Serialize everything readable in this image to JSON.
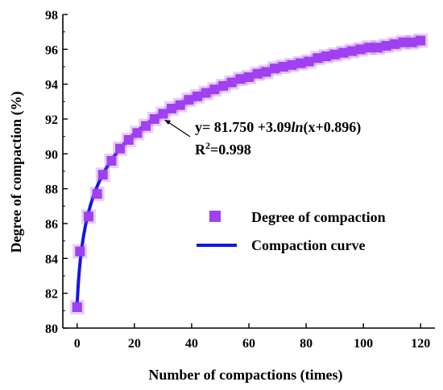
{
  "chart_data": {
    "type": "scatter",
    "title": "",
    "xlabel": "Number of compactions (times)",
    "ylabel": "Degree of compaction (%)",
    "xlim": [
      -5,
      125
    ],
    "ylim": [
      80,
      98
    ],
    "xticks": [
      0,
      20,
      40,
      60,
      80,
      100,
      120
    ],
    "yticks": [
      80,
      82,
      84,
      86,
      88,
      90,
      92,
      94,
      96,
      98
    ],
    "grid": false,
    "legend_position": "right",
    "series": [
      {
        "name": "Degree of compaction",
        "kind": "scatter",
        "marker": "square",
        "color": "#a040f0",
        "x": [
          0,
          1,
          4,
          7,
          9,
          12,
          15,
          18,
          21,
          24,
          27,
          30,
          33,
          36,
          39,
          42,
          45,
          48,
          51,
          54,
          57,
          60,
          63,
          66,
          69,
          72,
          75,
          78,
          81,
          84,
          87,
          90,
          93,
          96,
          99,
          102,
          105,
          108,
          111,
          114,
          117,
          120
        ],
        "y": [
          81.2,
          84.4,
          86.4,
          87.7,
          88.8,
          89.6,
          90.3,
          90.8,
          91.2,
          91.6,
          92.0,
          92.3,
          92.6,
          92.8,
          93.1,
          93.3,
          93.5,
          93.7,
          93.9,
          94.1,
          94.3,
          94.4,
          94.6,
          94.7,
          94.9,
          95.0,
          95.1,
          95.2,
          95.3,
          95.5,
          95.6,
          95.7,
          95.8,
          95.9,
          96.0,
          96.1,
          96.1,
          96.2,
          96.3,
          96.4,
          96.4,
          96.5
        ]
      },
      {
        "name": "Compaction curve",
        "kind": "line",
        "color": "#1414e6",
        "equation": {
          "a": 81.75,
          "b": 3.09,
          "c": 0.896
        },
        "x_range": [
          0,
          120
        ]
      }
    ],
    "annotation": {
      "equation_text": "y= 81.750 +3.09ln(x+0.896)",
      "r2_text": "R2=0.998",
      "arrow_target_x": 27
    }
  }
}
